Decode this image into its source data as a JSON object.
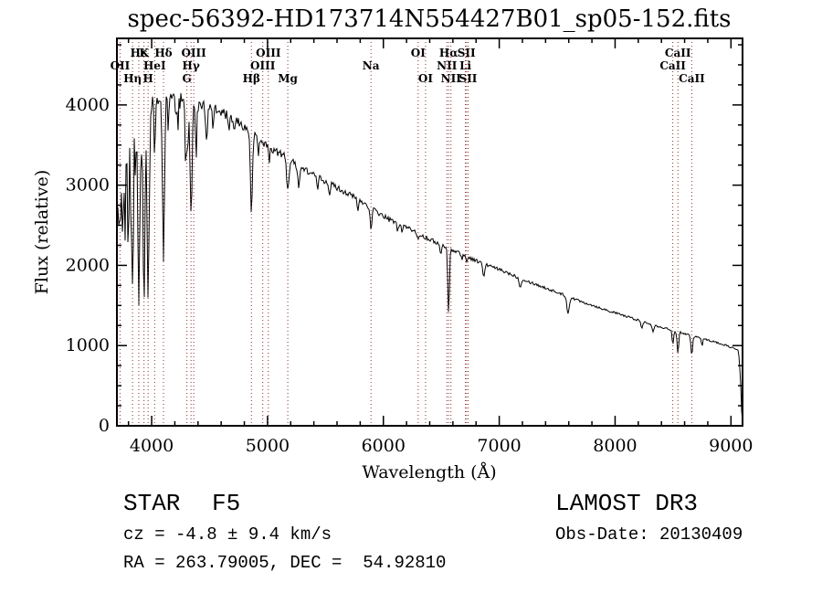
{
  "title": "spec-56392-HD173714N554427B01_sp05-152.fits",
  "axes": {
    "xlabel": "Wavelength (Å)",
    "ylabel": "Flux (relative)",
    "x_ticks": [
      4000,
      5000,
      6000,
      7000,
      8000,
      9000
    ],
    "y_ticks": [
      0,
      1000,
      2000,
      3000,
      4000
    ],
    "x_minor_step": 200,
    "y_minor_step": 250
  },
  "annotations": {
    "class": "STAR",
    "subclass": "F5",
    "survey": "LAMOST DR3",
    "cz": "cz = -4.8 ± 9.4 km/s",
    "obs_date": "Obs-Date: 20130409",
    "radec": "RA = 263.79005, DEC =  54.92810"
  },
  "colors": {
    "background": "#ffffff",
    "spectrum": "#000000",
    "frame": "#000000",
    "marker_line": "#8b2f2f",
    "marker_label": "#1a1a1a",
    "text": "#000000"
  },
  "chart_data": {
    "type": "line",
    "title": "spec-56392-HD173714N554427B01_sp05-152.fits",
    "xlabel": "Wavelength (Å)",
    "ylabel": "Flux (relative)",
    "xlim": [
      3700,
      9100
    ],
    "ylim": [
      0,
      4830
    ],
    "grid": false,
    "legend": "none",
    "continuum_points": [
      [
        3700,
        2450
      ],
      [
        3720,
        2950
      ],
      [
        3745,
        3300
      ],
      [
        3775,
        3520
      ],
      [
        3805,
        3680
      ],
      [
        3835,
        3780
      ],
      [
        3870,
        3870
      ],
      [
        3900,
        3920
      ],
      [
        3935,
        3960
      ],
      [
        3970,
        3990
      ],
      [
        4000,
        4020
      ],
      [
        4060,
        4060
      ],
      [
        4150,
        4140
      ],
      [
        4250,
        4120
      ],
      [
        4350,
        4060
      ],
      [
        4450,
        3990
      ],
      [
        4550,
        3940
      ],
      [
        4650,
        3870
      ],
      [
        4750,
        3780
      ],
      [
        4861,
        3650
      ],
      [
        4950,
        3540
      ],
      [
        5050,
        3440
      ],
      [
        5150,
        3360
      ],
      [
        5250,
        3250
      ],
      [
        5350,
        3170
      ],
      [
        5450,
        3090
      ],
      [
        5550,
        3010
      ],
      [
        5650,
        2930
      ],
      [
        5750,
        2850
      ],
      [
        5850,
        2760
      ],
      [
        5950,
        2660
      ],
      [
        6050,
        2570
      ],
      [
        6150,
        2510
      ],
      [
        6250,
        2440
      ],
      [
        6350,
        2360
      ],
      [
        6450,
        2290
      ],
      [
        6563,
        2215
      ],
      [
        6650,
        2160
      ],
      [
        6750,
        2090
      ],
      [
        6850,
        2030
      ],
      [
        6950,
        1975
      ],
      [
        7050,
        1920
      ],
      [
        7150,
        1860
      ],
      [
        7250,
        1800
      ],
      [
        7350,
        1745
      ],
      [
        7450,
        1690
      ],
      [
        7550,
        1635
      ],
      [
        7650,
        1580
      ],
      [
        7750,
        1530
      ],
      [
        7850,
        1480
      ],
      [
        7950,
        1430
      ],
      [
        8050,
        1385
      ],
      [
        8150,
        1340
      ],
      [
        8250,
        1295
      ],
      [
        8350,
        1250
      ],
      [
        8450,
        1210
      ],
      [
        8550,
        1170
      ],
      [
        8650,
        1130
      ],
      [
        8750,
        1090
      ],
      [
        8850,
        1050
      ],
      [
        8950,
        1005
      ],
      [
        9030,
        965
      ],
      [
        9065,
        935
      ],
      [
        9082,
        600
      ],
      [
        9092,
        180
      ],
      [
        9100,
        50
      ]
    ],
    "absorption_features_format": "[center_wavelength_A, depth_flux, sigma_A]",
    "absorption_features": [
      [
        3727,
        600,
        6
      ],
      [
        3750,
        1000,
        6
      ],
      [
        3771,
        1250,
        5
      ],
      [
        3798,
        1500,
        6
      ],
      [
        3820,
        900,
        5
      ],
      [
        3835,
        2100,
        7
      ],
      [
        3860,
        700,
        5
      ],
      [
        3889,
        2400,
        8
      ],
      [
        3910,
        600,
        5
      ],
      [
        3934,
        2550,
        8
      ],
      [
        3969,
        2450,
        9
      ],
      [
        4026,
        650,
        6
      ],
      [
        4102,
        1850,
        9
      ],
      [
        4144,
        420,
        6
      ],
      [
        4227,
        420,
        5
      ],
      [
        4300,
        750,
        10
      ],
      [
        4340,
        1450,
        9
      ],
      [
        4383,
        500,
        6
      ],
      [
        4472,
        330,
        6
      ],
      [
        4530,
        230,
        6
      ],
      [
        4668,
        230,
        6
      ],
      [
        4713,
        180,
        5
      ],
      [
        4861,
        1060,
        8
      ],
      [
        4922,
        200,
        5
      ],
      [
        5015,
        200,
        5
      ],
      [
        5175,
        380,
        10
      ],
      [
        5270,
        240,
        8
      ],
      [
        5430,
        150,
        7
      ],
      [
        5535,
        130,
        6
      ],
      [
        5780,
        130,
        7
      ],
      [
        5893,
        300,
        7
      ],
      [
        6122,
        110,
        6
      ],
      [
        6162,
        90,
        6
      ],
      [
        6300,
        100,
        5
      ],
      [
        6495,
        130,
        7
      ],
      [
        6563,
        810,
        7
      ],
      [
        6678,
        70,
        5
      ],
      [
        6717,
        80,
        5
      ],
      [
        6867,
        170,
        8
      ],
      [
        7180,
        110,
        9
      ],
      [
        7594,
        210,
        10
      ],
      [
        8230,
        90,
        8
      ],
      [
        8327,
        80,
        7
      ],
      [
        8498,
        180,
        6
      ],
      [
        8542,
        270,
        7
      ],
      [
        8662,
        240,
        7
      ],
      [
        8750,
        90,
        6
      ]
    ],
    "noise_profile_format": "[wavelength_A, noise_amplitude_flux]",
    "noise_profile": [
      [
        3700,
        100
      ],
      [
        4000,
        85
      ],
      [
        4350,
        70
      ],
      [
        4700,
        58
      ],
      [
        5100,
        46
      ],
      [
        5500,
        38
      ],
      [
        6000,
        30
      ],
      [
        6500,
        25
      ],
      [
        7000,
        20
      ],
      [
        7600,
        16
      ],
      [
        8300,
        13
      ],
      [
        9100,
        10
      ]
    ],
    "spectral_lines": [
      {
        "label": "OII",
        "wavelength": 3727,
        "row": 2
      },
      {
        "label": "Hη",
        "wavelength": 3835,
        "row": 3
      },
      {
        "label": "Hε",
        "wavelength": 3889,
        "row": 1
      },
      {
        "label": "K",
        "wavelength": 3934,
        "row": 1
      },
      {
        "label": "H",
        "wavelength": 3969,
        "row": 3
      },
      {
        "label": "HeI",
        "wavelength": 4026,
        "row": 2
      },
      {
        "label": "Hδ",
        "wavelength": 4102,
        "row": 1
      },
      {
        "label": "G",
        "wavelength": 4304,
        "row": 3
      },
      {
        "label": "Hγ",
        "wavelength": 4340,
        "row": 2
      },
      {
        "label": "OIII",
        "wavelength": 4363,
        "row": 1
      },
      {
        "label": "Hβ",
        "wavelength": 4861,
        "row": 3
      },
      {
        "label": "OIII",
        "wavelength": 4959,
        "row": 2
      },
      {
        "label": "OIII",
        "wavelength": 5007,
        "row": 1
      },
      {
        "label": "Mg",
        "wavelength": 5175,
        "row": 3
      },
      {
        "label": "Na",
        "wavelength": 5893,
        "row": 2
      },
      {
        "label": "OI",
        "wavelength": 6300,
        "row": 1
      },
      {
        "label": "OI",
        "wavelength": 6364,
        "row": 3
      },
      {
        "label": "NII",
        "wavelength": 6548,
        "row": 2
      },
      {
        "label": "Hα",
        "wavelength": 6563,
        "row": 1
      },
      {
        "label": "NII",
        "wavelength": 6583,
        "row": 3
      },
      {
        "label": "Li",
        "wavelength": 6708,
        "row": 2
      },
      {
        "label": "SII",
        "wavelength": 6717,
        "row": 1
      },
      {
        "label": "SII",
        "wavelength": 6731,
        "row": 3
      },
      {
        "label": "CaII",
        "wavelength": 8498,
        "row": 2
      },
      {
        "label": "CaII",
        "wavelength": 8542,
        "row": 1
      },
      {
        "label": "CaII",
        "wavelength": 8662,
        "row": 3
      }
    ]
  }
}
